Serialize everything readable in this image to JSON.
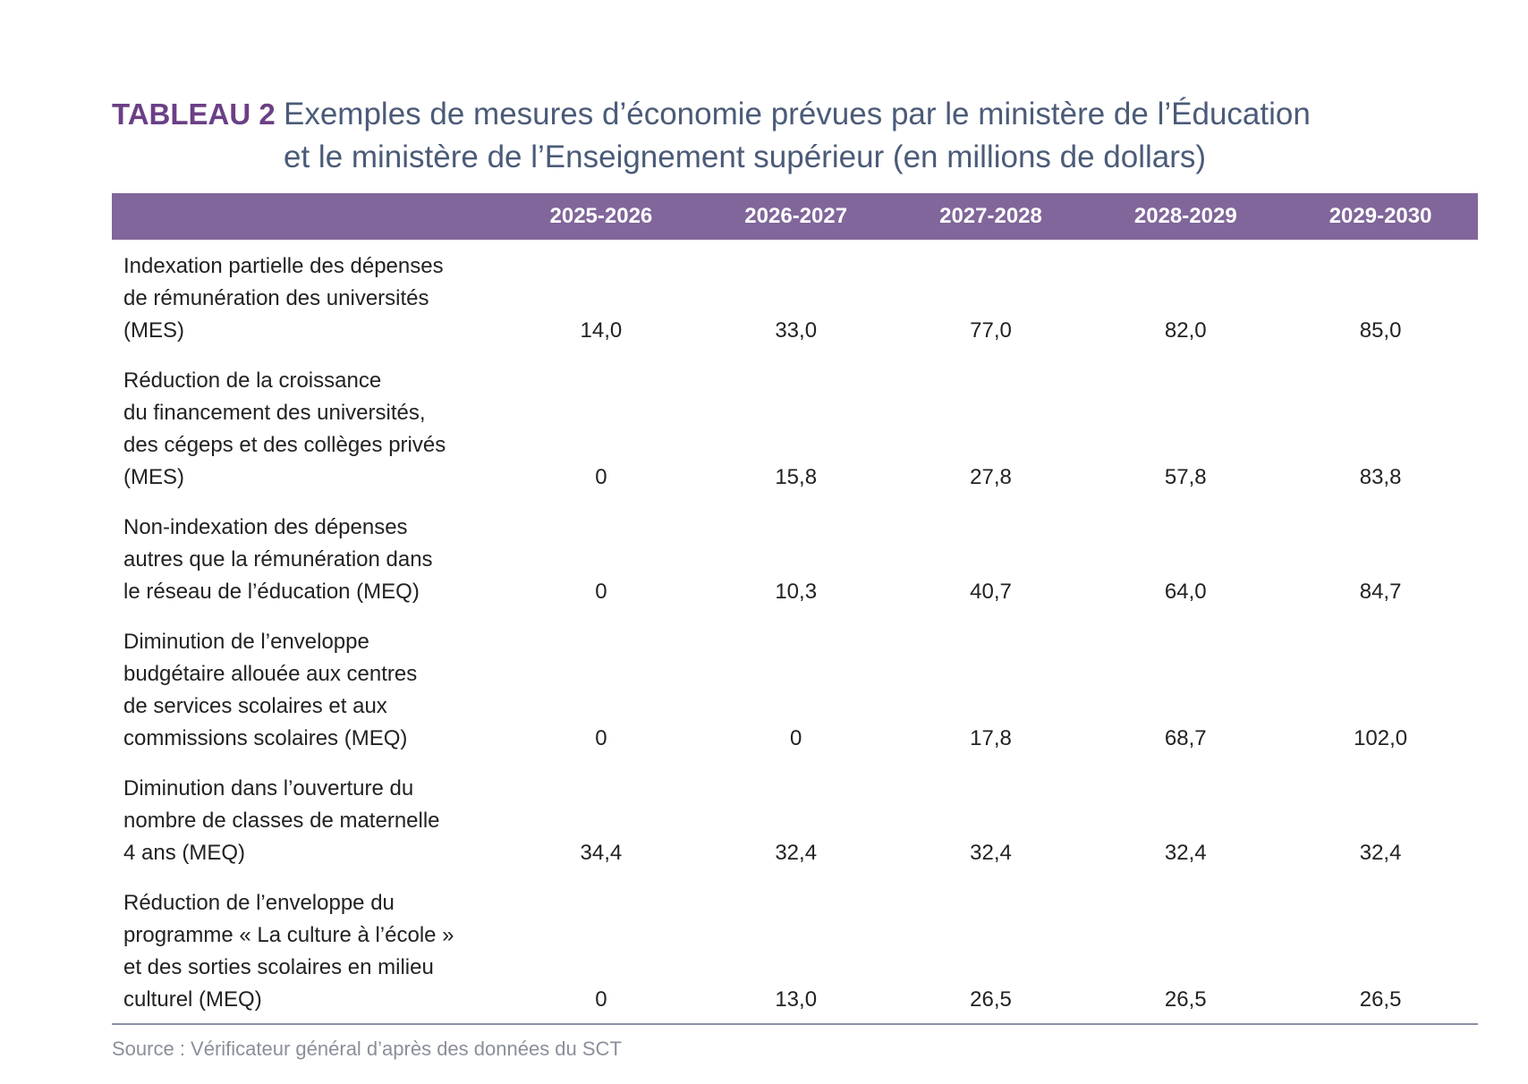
{
  "header": {
    "label": "TABLEAU 2",
    "title_lines": [
      "Exemples de mesures d’économie prévues par le ministère de l’Éducation",
      "et le ministère de l’Enseignement supérieur (en millions de dollars)"
    ]
  },
  "table": {
    "columns": [
      "2025-2026",
      "2026-2027",
      "2027-2028",
      "2028-2029",
      "2029-2030"
    ],
    "rows": [
      {
        "label_lines": [
          "Indexation partielle des dépenses",
          "de rémunération des universités",
          "(MES)"
        ],
        "values": [
          "14,0",
          "33,0",
          "77,0",
          "82,0",
          "85,0"
        ]
      },
      {
        "label_lines": [
          "Réduction de la croissance",
          "du financement des universités,",
          "des cégeps et des collèges privés",
          "(MES)"
        ],
        "values": [
          "0",
          "15,8",
          "27,8",
          "57,8",
          "83,8"
        ]
      },
      {
        "label_lines": [
          "Non-indexation des dépenses",
          "autres que la rémunération dans",
          "le réseau de l’éducation (MEQ)"
        ],
        "values": [
          "0",
          "10,3",
          "40,7",
          "64,0",
          "84,7"
        ]
      },
      {
        "label_lines": [
          "Diminution de l’enveloppe",
          "budgétaire allouée aux centres",
          "de services scolaires et aux",
          "commissions scolaires (MEQ)"
        ],
        "values": [
          "0",
          "0",
          "17,8",
          "68,7",
          "102,0"
        ]
      },
      {
        "label_lines": [
          "Diminution dans l’ouverture du",
          "nombre de classes de maternelle",
          "4 ans (MEQ)"
        ],
        "values": [
          "34,4",
          "32,4",
          "32,4",
          "32,4",
          "32,4"
        ]
      },
      {
        "label_lines": [
          "Réduction de l’enveloppe du",
          "programme « La culture à l’école »",
          "et des sorties scolaires en milieu",
          "culturel (MEQ)"
        ],
        "values": [
          "0",
          "13,0",
          "26,5",
          "26,5",
          "26,5"
        ]
      }
    ]
  },
  "source": "Source : Vérificateur général d’après des données du SCT"
}
